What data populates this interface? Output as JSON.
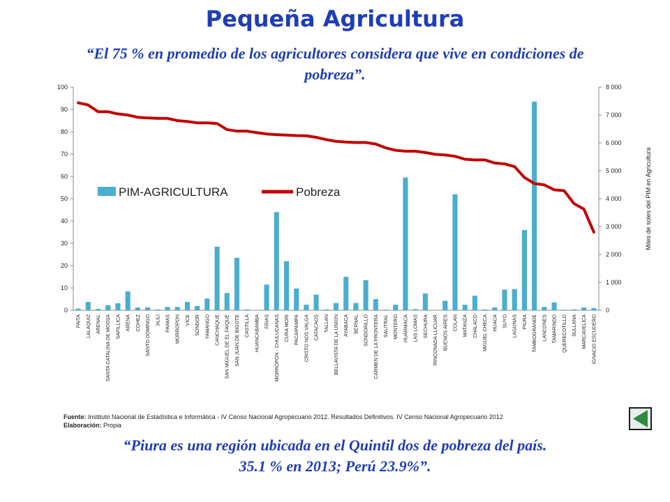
{
  "slide": {
    "title": "Pequeña Agricultura",
    "quote_top_line1": "“El 75 % en promedio de los agricultores considera que vive en condiciones de",
    "quote_top_line2": "pobreza”.",
    "source_label": "Fuente:",
    "source_text": " Instituto Nacional de Estadística e Informática - IV Censo Nacional Agropecuario 2012. Resultados Definitivos. IV Censo Nacional Agropecuario 2012",
    "elaboration_label": "Elaboración:",
    "elaboration_text": " Propia",
    "quote_bottom_line1": "“Piura es una región ubicada en el Quintil dos de pobreza del país.",
    "quote_bottom_line2": "35.1 % en 2013; Perú 23.9%”."
  },
  "nav": {
    "icon": "triangle-play-icon",
    "color": "#2e8b3d"
  },
  "chart_data": {
    "type": "bar+line",
    "title": "",
    "xlabel": "",
    "ylabel_left": "",
    "ylabel_right": "Miles de soles del PIM en Agricultura",
    "ylim_left": [
      0,
      100
    ],
    "ylim_right": [
      0,
      8000
    ],
    "yticks_left": [
      "0",
      "10",
      "20",
      "30",
      "40",
      "50",
      "60",
      "70",
      "80",
      "90",
      "100"
    ],
    "yticks_right": [
      "0",
      "1 000",
      "2 000",
      "3 000",
      "4 000",
      "5 000",
      "6 000",
      "7 000",
      "8 000"
    ],
    "grid": false,
    "legend_position": "left-middle",
    "categories": [
      "PAITA",
      "LALAQUIZ",
      "ARENAL",
      "SANTA CATALINA DE MOSSA",
      "SAPILLICA",
      "ARENA",
      "COHEZ",
      "SANTO DOMINGO",
      "JILILI",
      "PAIMAS",
      "MORROPON",
      "VICE",
      "SONDOR",
      "YAMANGO",
      "CANCHAQUE",
      "SAN MIGUEL DE EL FAIQUE",
      "SAN JUAN DE BIGOTE",
      "CASTILLA",
      "HUANCABAMBA",
      "FRIAS",
      "MORROPON - CHULUCANAS",
      "CURA MORI",
      "PACAIPAMPA",
      "CRISTO NOS VALGA",
      "CATACAOS",
      "TALLAN",
      "BELLAVISTA DE LA UNION",
      "AYABACA",
      "BERNAL",
      "SONDORILLO",
      "CARMEN DE LA FRONTERA",
      "SALITRAL",
      "MONTERO",
      "HUARMACA",
      "LAS LOMAS",
      "SECHURA",
      "RINCONADA LLICUAR",
      "BUENOS AIRES",
      "COLAN",
      "MATANZA",
      "CHALACO",
      "MIGUEL CHECA",
      "HUACA",
      "SUYO",
      "LAGUNAS",
      "PIURA",
      "TAMBOGRANDE",
      "LANCONES",
      "TAMARINDO",
      "QUERECOTILLO",
      "SULLANA",
      "MARCAVELICA",
      "IGNACIO ESCUDERO"
    ],
    "series": [
      {
        "name": "PIM-AGRICULTURA",
        "axis": "right",
        "type": "bar",
        "color": "#4aaed0",
        "values": [
          60,
          300,
          50,
          180,
          250,
          680,
          100,
          100,
          30,
          120,
          120,
          300,
          150,
          420,
          2280,
          620,
          1880,
          30,
          0,
          920,
          3520,
          1760,
          780,
          200,
          560,
          30,
          260,
          1200,
          260,
          1080,
          400,
          20,
          200,
          4760,
          40,
          600,
          0,
          340,
          4160,
          200,
          520,
          30,
          100,
          740,
          760,
          2880,
          7480,
          120,
          280,
          20,
          30,
          100,
          80
        ]
      },
      {
        "name": "Pobreza",
        "axis": "left",
        "type": "line",
        "color": "#c00000",
        "values": [
          93,
          92,
          89,
          89,
          88,
          87.5,
          86.5,
          86.2,
          86,
          86,
          85,
          84.6,
          84,
          84,
          83.7,
          81,
          80.3,
          80.3,
          79.6,
          79,
          78.7,
          78.5,
          78.3,
          78.2,
          77.5,
          76.5,
          75.7,
          75.4,
          75.2,
          75.2,
          74.5,
          72.8,
          71.7,
          71.3,
          71.3,
          70.7,
          69.9,
          69.6,
          69,
          67.7,
          67.4,
          67.4,
          66,
          65.6,
          64.4,
          59.5,
          56.8,
          56.2,
          54,
          53.6,
          47.8,
          45.3,
          35
        ]
      }
    ]
  }
}
